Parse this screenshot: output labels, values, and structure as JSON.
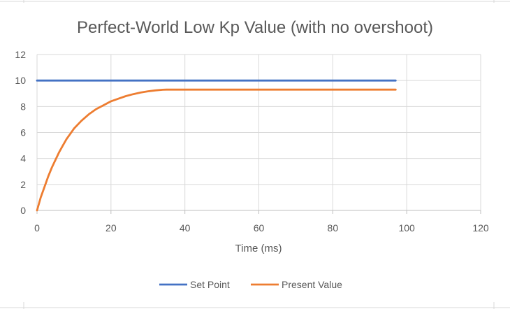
{
  "chart_data": {
    "type": "line",
    "title": "Perfect-World Low Kp Value (with no overshoot)",
    "xlabel": "Time (ms)",
    "ylabel": "",
    "xlim": [
      0,
      120
    ],
    "ylim": [
      0,
      12
    ],
    "xticks": [
      0,
      20,
      40,
      60,
      80,
      100,
      120
    ],
    "yticks": [
      0,
      2,
      4,
      6,
      8,
      10,
      12
    ],
    "grid": true,
    "legend": "bottom",
    "series": [
      {
        "name": "Set Point",
        "color": "#4472c4",
        "points": [
          [
            0,
            10
          ],
          [
            97,
            10
          ]
        ]
      },
      {
        "name": "Present Value",
        "color": "#ed7d31",
        "points": [
          [
            0,
            0
          ],
          [
            1,
            1.0
          ],
          [
            2,
            1.8
          ],
          [
            3,
            2.6
          ],
          [
            4,
            3.3
          ],
          [
            5,
            3.9
          ],
          [
            6,
            4.5
          ],
          [
            7,
            5.0
          ],
          [
            8,
            5.5
          ],
          [
            9,
            5.9
          ],
          [
            10,
            6.3
          ],
          [
            12,
            6.9
          ],
          [
            14,
            7.4
          ],
          [
            16,
            7.8
          ],
          [
            18,
            8.1
          ],
          [
            20,
            8.4
          ],
          [
            22,
            8.6
          ],
          [
            24,
            8.8
          ],
          [
            26,
            8.95
          ],
          [
            28,
            9.07
          ],
          [
            30,
            9.17
          ],
          [
            32,
            9.24
          ],
          [
            34,
            9.29
          ],
          [
            35,
            9.3
          ],
          [
            97,
            9.3
          ]
        ]
      }
    ]
  }
}
